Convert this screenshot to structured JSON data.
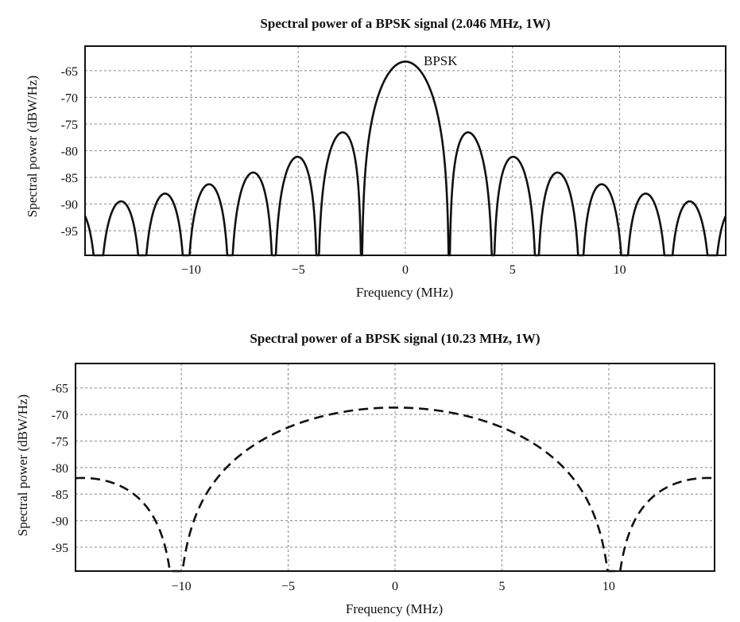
{
  "chart_data": [
    {
      "type": "line",
      "title": "Spectral power of a BPSK signal (2.046 MHz, 1W)",
      "xlabel": "Frequency (MHz)",
      "ylabel": "Spectral power (dBW/Hz)",
      "xlim": [
        -14.95,
        14.95
      ],
      "ylim": [
        -99.6,
        -60.4
      ],
      "xticks": [
        -10,
        -5,
        0,
        5,
        10
      ],
      "xtick_labels": [
        "−10",
        "−5",
        "0",
        "5",
        "10"
      ],
      "yticks": [
        -65,
        -70,
        -75,
        -80,
        -85,
        -90,
        -95
      ],
      "ytick_labels": [
        "-65",
        "-70",
        "-75",
        "-80",
        "-85",
        "-90",
        "-95"
      ],
      "grid": true,
      "series": [
        {
          "name": "BPSK",
          "style": "solid",
          "chip_rate_mhz": 2.046,
          "peak_dbw_hz": -63.3
        }
      ],
      "annotations": [
        {
          "text": "BPSK",
          "x": 1.0,
          "y": -63.3
        }
      ]
    },
    {
      "type": "line",
      "title": "Spectral power of a BPSK signal (10.23 MHz, 1W)",
      "xlabel": "Frequency (MHz)",
      "ylabel": "Spectral power (dBW/Hz)",
      "xlim": [
        -14.95,
        14.95
      ],
      "ylim": [
        -99.5,
        -60.4
      ],
      "xticks": [
        -10,
        -5,
        0,
        5,
        10
      ],
      "xtick_labels": [
        "−10",
        "−5",
        "0",
        "5",
        "10"
      ],
      "yticks": [
        -65,
        -70,
        -75,
        -80,
        -85,
        -90,
        -95
      ],
      "ytick_labels": [
        "-65",
        "-70",
        "-75",
        "-80",
        "-85",
        "-90",
        "-95"
      ],
      "grid": true,
      "series": [
        {
          "name": "",
          "style": "dashed",
          "chip_rate_mhz": 10.23,
          "peak_dbw_hz": -68.7
        }
      ],
      "annotations": []
    }
  ]
}
